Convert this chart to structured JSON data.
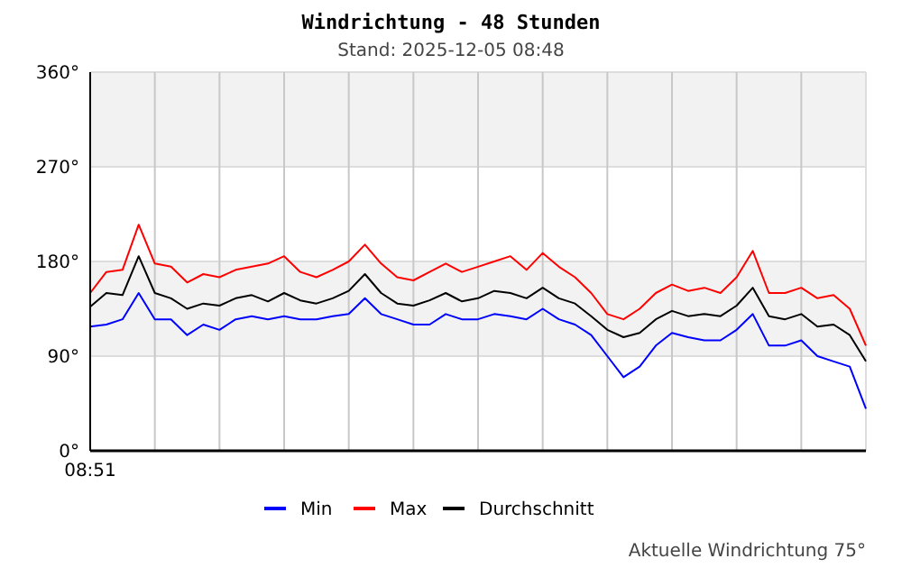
{
  "chart_data": {
    "type": "line",
    "title": "Windrichtung - 48 Stunden",
    "subtitle": "Stand: 2025-12-05 08:48",
    "categories": [
      "08:51",
      null,
      null,
      null,
      null,
      null,
      null,
      null,
      null,
      null,
      null,
      null,
      null,
      null,
      null,
      null,
      null,
      null,
      null,
      null,
      null,
      null,
      null,
      null,
      null,
      null,
      null,
      null,
      null,
      null,
      null,
      null,
      null,
      null,
      null,
      null,
      null,
      null,
      null,
      null,
      null,
      null,
      null,
      null,
      null,
      null,
      null,
      null,
      null
    ],
    "series": [
      {
        "name": "Min",
        "color": "#0000ff",
        "values": [
          118,
          120,
          125,
          150,
          125,
          125,
          110,
          120,
          115,
          125,
          128,
          125,
          128,
          125,
          125,
          128,
          130,
          145,
          130,
          125,
          120,
          120,
          130,
          125,
          125,
          130,
          128,
          125,
          135,
          125,
          120,
          110,
          90,
          70,
          80,
          100,
          112,
          108,
          105,
          105,
          115,
          130,
          100,
          100,
          105,
          90,
          85,
          80,
          40
        ]
      },
      {
        "name": "Max",
        "color": "#ff0000",
        "values": [
          150,
          170,
          172,
          215,
          178,
          175,
          160,
          168,
          165,
          172,
          175,
          178,
          185,
          170,
          165,
          172,
          180,
          196,
          178,
          165,
          162,
          170,
          178,
          170,
          175,
          180,
          185,
          172,
          188,
          175,
          165,
          150,
          130,
          125,
          135,
          150,
          158,
          152,
          155,
          150,
          165,
          190,
          150,
          150,
          155,
          145,
          148,
          135,
          100
        ]
      },
      {
        "name": "Durchschnitt",
        "color": "#000000",
        "values": [
          137,
          150,
          148,
          185,
          150,
          145,
          135,
          140,
          138,
          145,
          148,
          142,
          150,
          143,
          140,
          145,
          152,
          168,
          150,
          140,
          138,
          143,
          150,
          142,
          145,
          152,
          150,
          145,
          155,
          145,
          140,
          128,
          115,
          108,
          112,
          125,
          133,
          128,
          130,
          128,
          138,
          155,
          128,
          125,
          130,
          118,
          120,
          110,
          85
        ]
      }
    ],
    "ylim": [
      0,
      360
    ],
    "yticks": [
      {
        "value": 0,
        "label": "0°"
      },
      {
        "value": 90,
        "label": "90°"
      },
      {
        "value": 180,
        "label": "180°"
      },
      {
        "value": 270,
        "label": "270°"
      },
      {
        "value": 360,
        "label": "360°"
      }
    ],
    "bands": [
      {
        "axis": "y",
        "from": 90,
        "to": 180,
        "label": null,
        "color": "#f2f2f2"
      },
      {
        "axis": "y",
        "from": 270,
        "to": 360,
        "label": null,
        "color": "#f2f2f2"
      }
    ],
    "grid": true,
    "legend": "bottom",
    "marker": "none",
    "line_style": "solid",
    "annotations": [
      "Aktuelle Windrichtung 75°"
    ]
  }
}
